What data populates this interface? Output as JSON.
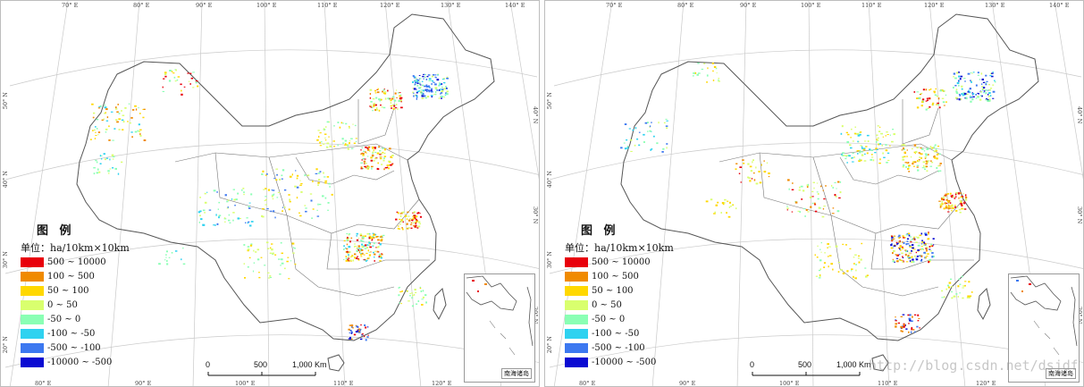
{
  "panels": [
    {
      "id": "left",
      "legend": {
        "title": "图 例",
        "unit": "单位：ha/10km×10km",
        "classes": [
          {
            "label": "500 ~ 10000",
            "color": "#e8000b"
          },
          {
            "label": "100 ~ 500",
            "color": "#f08a00"
          },
          {
            "label": "50 ~ 100",
            "color": "#ffd800"
          },
          {
            "label": "0 ~ 50",
            "color": "#d9ff6e"
          },
          {
            "label": "-50 ~ 0",
            "color": "#8affb4"
          },
          {
            "label": "-100 ~ -50",
            "color": "#2fd2f0"
          },
          {
            "label": "-500 ~ -100",
            "color": "#3c78f0"
          },
          {
            "label": "-10000 ~ -500",
            "color": "#0a0ad2"
          }
        ]
      },
      "scalebar": {
        "labels": [
          "0",
          "500",
          "1,000 Km"
        ]
      },
      "inset_label": "南海诸岛",
      "top_ticks": [
        "70° E",
        "80° E",
        "90° E",
        "100° E",
        "110° E",
        "120° E",
        "130° E",
        "140° E"
      ],
      "bottom_ticks": [
        "80° E",
        "90° E",
        "100° E",
        "110° E",
        "120° E"
      ],
      "left_ticks": [
        "50° N",
        "40° N",
        "30° N",
        "20° N"
      ],
      "right_ticks": [
        "40° N",
        "30° N",
        "20° N"
      ]
    },
    {
      "id": "right",
      "legend": {
        "title": "图 例",
        "unit": "单位：ha/10km×10km",
        "classes": [
          {
            "label": "500 ~ 10000",
            "color": "#e8000b"
          },
          {
            "label": "100 ~ 500",
            "color": "#f08a00"
          },
          {
            "label": "50 ~ 100",
            "color": "#ffd800"
          },
          {
            "label": "0 ~ 50",
            "color": "#d9ff6e"
          },
          {
            "label": "-50 ~ 0",
            "color": "#8affb4"
          },
          {
            "label": "-100 ~ -50",
            "color": "#2fd2f0"
          },
          {
            "label": "-500 ~ -100",
            "color": "#3c78f0"
          },
          {
            "label": "-10000 ~ -500",
            "color": "#0a0ad2"
          }
        ]
      },
      "scalebar": {
        "labels": [
          "0",
          "500",
          "1,000 Km"
        ]
      },
      "inset_label": "南海诸岛",
      "top_ticks": [
        "70° E",
        "80° E",
        "90° E",
        "100° E",
        "110° E",
        "120° E",
        "130° E",
        "140° E"
      ],
      "bottom_ticks": [
        "80° E",
        "90° E",
        "100° E",
        "110° E",
        "120° E"
      ],
      "left_ticks": [
        "50° N",
        "40° N",
        "30° N",
        "20° N"
      ],
      "right_ticks": [
        "40° N",
        "30° N",
        "20° N"
      ]
    }
  ],
  "watermark": "http://blog.csdn.net/dsjdf"
}
